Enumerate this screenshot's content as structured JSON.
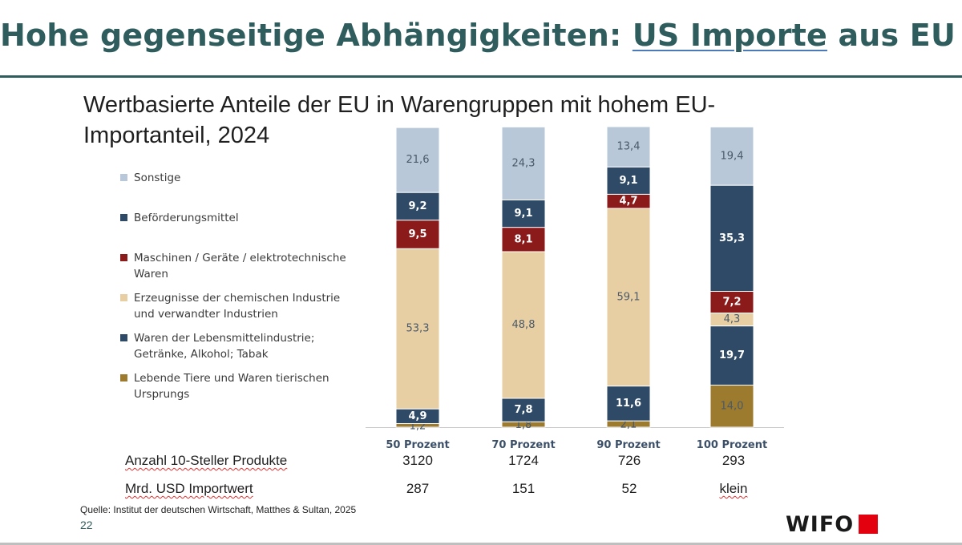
{
  "slide": {
    "title_part1": "Hohe gegenseitige Abhängigkeiten: ",
    "title_highlight": "US Importe",
    "title_part2": " aus EU",
    "subtitle": "Wertbasierte Anteile der EU in Warengruppen mit hohem EU-Importanteil, 2024",
    "source": "Quelle: Institut der deutschen Wirtschaft, Matthes & Sultan, 2025",
    "page_number": "22",
    "logo_text": "WIFO",
    "logo_color": "#e3000f"
  },
  "table": {
    "rows": [
      {
        "label": "Anzahl 10-Steller Produkte",
        "values": [
          "3120",
          "1724",
          "726",
          "293"
        ]
      },
      {
        "label": "Mrd. USD Importwert",
        "values": [
          "287",
          "151",
          "52",
          "klein"
        ]
      }
    ]
  },
  "chart_data": {
    "type": "bar",
    "stacked": true,
    "categories": [
      "50 Prozent",
      "70 Prozent",
      "90 Prozent",
      "100 Prozent"
    ],
    "series": [
      {
        "name": "Lebende Tiere und Waren tierischen Ursprungs",
        "color": "#9c7a2e",
        "values": [
          1.2,
          1.8,
          2.1,
          14.0
        ],
        "labels": [
          "1,2",
          "1,8",
          "2,1",
          "14,0"
        ]
      },
      {
        "name": "Waren der Lebensmittelindustrie; Getränke, Alkohol; Tabak",
        "color": "#2e4a66",
        "values": [
          4.9,
          7.8,
          11.6,
          19.7
        ],
        "labels": [
          "4,9",
          "7,8",
          "11,6",
          "19,7"
        ]
      },
      {
        "name": "Erzeugnisse der chemischen Industrie und verwandter Industrien",
        "color": "#e8cfa3",
        "values": [
          53.3,
          48.8,
          59.1,
          4.3
        ],
        "labels": [
          "53,3",
          "48,8",
          "59,1",
          "4,3"
        ]
      },
      {
        "name": "Maschinen / Geräte / elektrotechnische Waren",
        "color": "#8b1a1a",
        "values": [
          9.5,
          8.1,
          4.7,
          7.2
        ],
        "labels": [
          "9,5",
          "8,1",
          "4,7",
          "7,2"
        ]
      },
      {
        "name": "Beförderungsmittel",
        "color": "#2e4a66",
        "values": [
          9.2,
          9.1,
          9.1,
          35.3
        ],
        "labels": [
          "9,2",
          "9,1",
          "9,1",
          "35,3"
        ]
      },
      {
        "name": "Sonstige",
        "color": "#b8c8d8",
        "values": [
          21.6,
          24.3,
          13.4,
          19.4
        ],
        "labels": [
          "21,6",
          "24,3",
          "13,4",
          "19,4"
        ]
      }
    ],
    "legend_order": [
      [
        "Sonstige"
      ],
      [
        "Beförderungsmittel"
      ],
      [
        "Maschinen / Geräte / elektrotechnische",
        "Waren"
      ],
      [
        "Erzeugnisse der chemischen Industrie",
        "und verwandter Industrien"
      ],
      [
        "Waren der Lebensmittelindustrie;",
        "Getränke, Alkohol; Tabak"
      ],
      [
        "Lebende Tiere und Waren tierischen",
        "Ursprungs"
      ]
    ],
    "legend_placement": "left",
    "grid": false,
    "ylim": [
      0,
      100
    ]
  }
}
